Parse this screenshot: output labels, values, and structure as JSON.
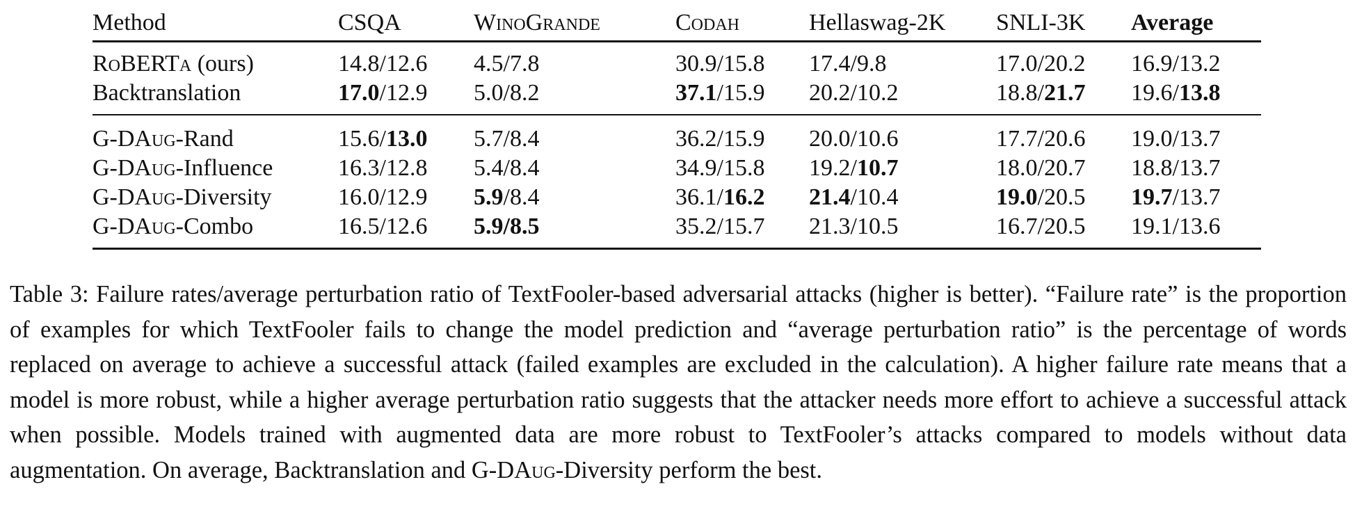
{
  "table": {
    "headers": [
      {
        "text": "Method",
        "style": "normal"
      },
      {
        "text": "CSQA",
        "style": "normal"
      },
      {
        "text": "WinoGrande",
        "style": "smallcaps"
      },
      {
        "text": "Codah",
        "style": "smallcaps"
      },
      {
        "text": "Hellaswag-2K",
        "style": "normal"
      },
      {
        "text": "SNLI-3K",
        "style": "normal"
      },
      {
        "text": "Average",
        "style": "bold"
      }
    ],
    "groups": [
      {
        "rows": [
          {
            "method": {
              "prefix": "",
              "sc": "RoBERTa",
              "suffix": " (ours)"
            },
            "cells": [
              {
                "a": "14.8",
                "a_bold": false,
                "b": "12.6",
                "b_bold": false
              },
              {
                "a": "4.5",
                "a_bold": false,
                "b": "7.8",
                "b_bold": false
              },
              {
                "a": "30.9",
                "a_bold": false,
                "b": "15.8",
                "b_bold": false
              },
              {
                "a": "17.4",
                "a_bold": false,
                "b": "9.8",
                "b_bold": false
              },
              {
                "a": "17.0",
                "a_bold": false,
                "b": "20.2",
                "b_bold": false
              },
              {
                "a": "16.9",
                "a_bold": false,
                "b": "13.2",
                "b_bold": false
              }
            ]
          },
          {
            "method": {
              "prefix": "Backtranslation",
              "sc": "",
              "suffix": ""
            },
            "cells": [
              {
                "a": "17.0",
                "a_bold": true,
                "b": "12.9",
                "b_bold": false
              },
              {
                "a": "5.0",
                "a_bold": false,
                "b": "8.2",
                "b_bold": false
              },
              {
                "a": "37.1",
                "a_bold": true,
                "b": "15.9",
                "b_bold": false
              },
              {
                "a": "20.2",
                "a_bold": false,
                "b": "10.2",
                "b_bold": false
              },
              {
                "a": "18.8",
                "a_bold": false,
                "b": "21.7",
                "b_bold": true
              },
              {
                "a": "19.6",
                "a_bold": false,
                "b": "13.8",
                "b_bold": true
              }
            ]
          }
        ]
      },
      {
        "rows": [
          {
            "method": {
              "prefix": "G-DA",
              "sc": "ug",
              "suffix": "-Rand"
            },
            "cells": [
              {
                "a": "15.6",
                "a_bold": false,
                "b": "13.0",
                "b_bold": true
              },
              {
                "a": "5.7",
                "a_bold": false,
                "b": "8.4",
                "b_bold": false
              },
              {
                "a": "36.2",
                "a_bold": false,
                "b": "15.9",
                "b_bold": false
              },
              {
                "a": "20.0",
                "a_bold": false,
                "b": "10.6",
                "b_bold": false
              },
              {
                "a": "17.7",
                "a_bold": false,
                "b": "20.6",
                "b_bold": false
              },
              {
                "a": "19.0",
                "a_bold": false,
                "b": "13.7",
                "b_bold": false
              }
            ]
          },
          {
            "method": {
              "prefix": "G-DA",
              "sc": "ug",
              "suffix": "-Influence"
            },
            "cells": [
              {
                "a": "16.3",
                "a_bold": false,
                "b": "12.8",
                "b_bold": false
              },
              {
                "a": "5.4",
                "a_bold": false,
                "b": "8.4",
                "b_bold": false
              },
              {
                "a": "34.9",
                "a_bold": false,
                "b": "15.8",
                "b_bold": false
              },
              {
                "a": "19.2",
                "a_bold": false,
                "b": "10.7",
                "b_bold": true
              },
              {
                "a": "18.0",
                "a_bold": false,
                "b": "20.7",
                "b_bold": false
              },
              {
                "a": "18.8",
                "a_bold": false,
                "b": "13.7",
                "b_bold": false
              }
            ]
          },
          {
            "method": {
              "prefix": "G-DA",
              "sc": "ug",
              "suffix": "-Diversity"
            },
            "cells": [
              {
                "a": "16.0",
                "a_bold": false,
                "b": "12.9",
                "b_bold": false
              },
              {
                "a": "5.9",
                "a_bold": true,
                "b": "8.4",
                "b_bold": false
              },
              {
                "a": "36.1",
                "a_bold": false,
                "b": "16.2",
                "b_bold": true
              },
              {
                "a": "21.4",
                "a_bold": true,
                "b": "10.4",
                "b_bold": false
              },
              {
                "a": "19.0",
                "a_bold": true,
                "b": "20.5",
                "b_bold": false
              },
              {
                "a": "19.7",
                "a_bold": true,
                "b": "13.7",
                "b_bold": false
              }
            ]
          },
          {
            "method": {
              "prefix": "G-DA",
              "sc": "ug",
              "suffix": "-Combo"
            },
            "cells": [
              {
                "a": "16.5",
                "a_bold": false,
                "b": "12.6",
                "b_bold": false
              },
              {
                "a": "5.9",
                "a_bold": true,
                "b": "8.5",
                "b_bold": true
              },
              {
                "a": "35.2",
                "a_bold": false,
                "b": "15.7",
                "b_bold": false
              },
              {
                "a": "21.3",
                "a_bold": false,
                "b": "10.5",
                "b_bold": false
              },
              {
                "a": "16.7",
                "a_bold": false,
                "b": "20.5",
                "b_bold": false
              },
              {
                "a": "19.1",
                "a_bold": false,
                "b": "13.6",
                "b_bold": false
              }
            ]
          }
        ]
      }
    ]
  },
  "caption": {
    "part1": "Table 3: Failure rates/average perturbation ratio of TextFooler-based adversarial attacks (higher is better). “Failure rate” is the proportion of examples for which TextFooler fails to change the model prediction and “average perturbation ratio” is the percentage of words replaced on average to achieve a successful attack (failed examples are excluded in the calculation). A higher failure rate means that a model is more robust, while a higher average perturbation ratio suggests that the attacker needs more effort to achieve a successful attack when possible. Models trained with augmented data are more robust to TextFooler’s attacks compared to models without data augmentation. On average, Backtranslation and G-DA",
    "part1_sc": "ug",
    "part2": "-Diversity perform the best."
  }
}
